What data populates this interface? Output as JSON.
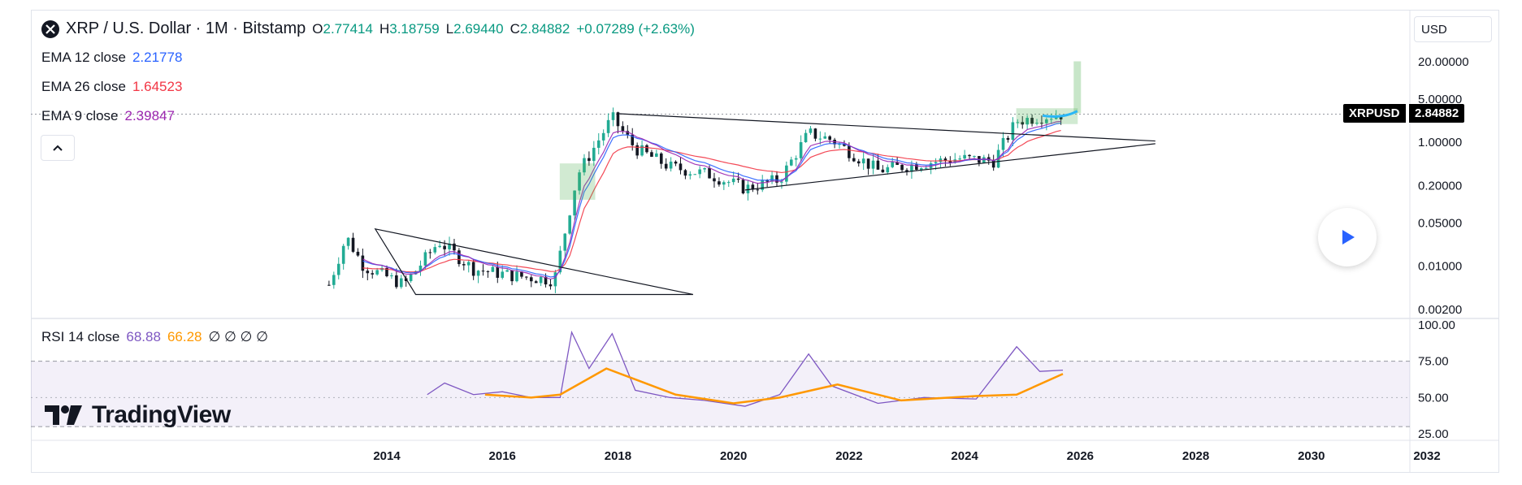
{
  "header": {
    "symbol_title": "XRP / U.S. Dollar · 1M · Bitstamp",
    "ohlc": [
      {
        "label": "O",
        "value": "2.77414"
      },
      {
        "label": "H",
        "value": "3.18759"
      },
      {
        "label": "L",
        "value": "2.69440"
      },
      {
        "label": "C",
        "value": "2.84882"
      }
    ],
    "change": "+0.07289 (+2.63%)"
  },
  "indicators": [
    {
      "name": "EMA 12 close",
      "value": "2.21778",
      "color": "#2962ff"
    },
    {
      "name": "EMA 26 close",
      "value": "1.64523",
      "color": "#f23645"
    },
    {
      "name": "EMA 9 close",
      "value": "2.39847",
      "color": "#9c27b0"
    }
  ],
  "rsi_legend": {
    "name": "RSI 14 close",
    "value1": "68.88",
    "value2": "66.28",
    "placeholders": "∅ ∅ ∅ ∅"
  },
  "currency": "USD",
  "last_price_tag": {
    "symbol": "XRPUSD",
    "value": "2.84882"
  },
  "logo_text": "TradingView",
  "colors": {
    "up": "#22ab94",
    "down": "#131722",
    "rsi": "#7e57c2",
    "rsi_ma": "#ff9800",
    "projection": "#4caf50"
  },
  "chart_data": {
    "type": "candlestick",
    "title": "XRP / U.S. Dollar · 1M · Bitstamp",
    "y_scale": "log",
    "price_ticks": [
      "20.00000",
      "5.00000",
      "1.00000",
      "0.20000",
      "0.05000",
      "0.01000",
      "0.00200"
    ],
    "x_ticks": [
      "2014",
      "2016",
      "2018",
      "2020",
      "2022",
      "2024",
      "2026",
      "2028",
      "2030",
      "2032"
    ],
    "rsi_ticks": [
      "100.00",
      "75.00",
      "50.00",
      "25.00"
    ],
    "price_path": [
      {
        "t": 2013.0,
        "p": 0.005
      },
      {
        "t": 2013.3,
        "p": 0.03
      },
      {
        "t": 2013.6,
        "p": 0.01
      },
      {
        "t": 2014.3,
        "p": 0.005
      },
      {
        "t": 2014.9,
        "p": 0.025
      },
      {
        "t": 2015.5,
        "p": 0.009
      },
      {
        "t": 2016.2,
        "p": 0.007
      },
      {
        "t": 2016.9,
        "p": 0.006
      },
      {
        "t": 2017.3,
        "p": 0.3
      },
      {
        "t": 2017.9,
        "p": 2.5
      },
      {
        "t": 2018.3,
        "p": 0.8
      },
      {
        "t": 2018.9,
        "p": 0.4
      },
      {
        "t": 2019.6,
        "p": 0.3
      },
      {
        "t": 2020.2,
        "p": 0.18
      },
      {
        "t": 2020.8,
        "p": 0.25
      },
      {
        "t": 2021.3,
        "p": 1.4
      },
      {
        "t": 2021.7,
        "p": 1.1
      },
      {
        "t": 2022.5,
        "p": 0.35
      },
      {
        "t": 2023.2,
        "p": 0.45
      },
      {
        "t": 2023.9,
        "p": 0.55
      },
      {
        "t": 2024.5,
        "p": 0.5
      },
      {
        "t": 2024.9,
        "p": 2.2
      },
      {
        "t": 2025.3,
        "p": 2.6
      },
      {
        "t": 2025.7,
        "p": 2.85
      }
    ],
    "triangle_1": [
      {
        "t": 2013.8,
        "p": 0.04
      },
      {
        "t": 2019.3,
        "p": 0.0035
      },
      {
        "t": 2014.5,
        "p": 0.0035
      }
    ],
    "triangle_2": [
      {
        "t": 2018.0,
        "p": 2.9
      },
      {
        "t": 2027.3,
        "p": 1.05
      },
      {
        "t": 2020.2,
        "p": 0.17
      },
      {
        "t": 2027.3,
        "p": 0.95
      }
    ],
    "projection_box": [
      {
        "t": 2024.9,
        "p": 2.0
      },
      {
        "t": 2025.95,
        "p": 3.5
      }
    ],
    "projection_bar": {
      "t": 2025.95,
      "low": 3.0,
      "high": 20.0
    },
    "rsi": [
      {
        "t": 2014.7,
        "v": 52
      },
      {
        "t": 2015.0,
        "v": 60
      },
      {
        "t": 2015.5,
        "v": 52
      },
      {
        "t": 2016.0,
        "v": 54
      },
      {
        "t": 2016.5,
        "v": 50
      },
      {
        "t": 2017.0,
        "v": 50
      },
      {
        "t": 2017.2,
        "v": 95
      },
      {
        "t": 2017.5,
        "v": 70
      },
      {
        "t": 2017.9,
        "v": 94
      },
      {
        "t": 2018.3,
        "v": 55
      },
      {
        "t": 2018.9,
        "v": 50
      },
      {
        "t": 2019.5,
        "v": 48
      },
      {
        "t": 2020.2,
        "v": 44
      },
      {
        "t": 2020.8,
        "v": 52
      },
      {
        "t": 2021.3,
        "v": 80
      },
      {
        "t": 2021.7,
        "v": 58
      },
      {
        "t": 2022.5,
        "v": 46
      },
      {
        "t": 2023.3,
        "v": 50
      },
      {
        "t": 2024.2,
        "v": 49
      },
      {
        "t": 2024.9,
        "v": 85
      },
      {
        "t": 2025.3,
        "v": 68
      },
      {
        "t": 2025.7,
        "v": 68.88
      }
    ],
    "rsi_ma": [
      {
        "t": 2015.7,
        "v": 52
      },
      {
        "t": 2016.5,
        "v": 50
      },
      {
        "t": 2017.0,
        "v": 52
      },
      {
        "t": 2017.8,
        "v": 70
      },
      {
        "t": 2018.2,
        "v": 64
      },
      {
        "t": 2019.0,
        "v": 52
      },
      {
        "t": 2020.0,
        "v": 46
      },
      {
        "t": 2020.8,
        "v": 50
      },
      {
        "t": 2021.8,
        "v": 59
      },
      {
        "t": 2022.9,
        "v": 48
      },
      {
        "t": 2024.2,
        "v": 51
      },
      {
        "t": 2024.9,
        "v": 52
      },
      {
        "t": 2025.7,
        "v": 66.28
      }
    ]
  }
}
